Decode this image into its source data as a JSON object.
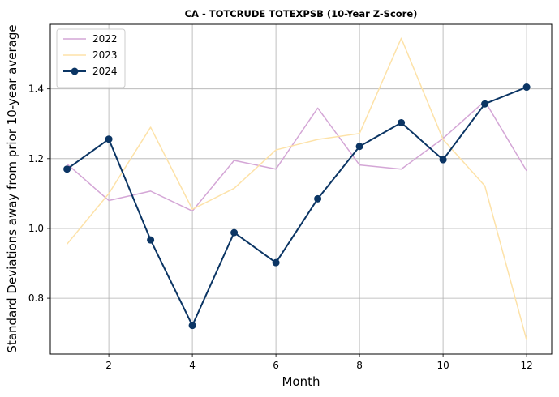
{
  "chart_data": {
    "type": "line",
    "title": "CA - TOTCRUDE TOTEXPSB (10-Year Z-Score)",
    "xlabel": "Month",
    "ylabel": "Standard Deviations away from prior 10-year average",
    "xlim": [
      0.6,
      12.6
    ],
    "ylim": [
      0.64,
      1.585
    ],
    "xticks": [
      2,
      4,
      6,
      8,
      10,
      12
    ],
    "yticks": [
      0.8,
      1.0,
      1.2,
      1.4
    ],
    "grid": true,
    "legend_position": "upper-left",
    "x": [
      1,
      2,
      3,
      4,
      5,
      6,
      7,
      8,
      9,
      10,
      11,
      12
    ],
    "series": [
      {
        "name": "2022",
        "color": "#d4a6d6",
        "markers": false,
        "values": [
          1.185,
          1.08,
          1.107,
          1.05,
          1.195,
          1.17,
          1.345,
          1.182,
          1.17,
          1.258,
          1.365,
          1.165
        ]
      },
      {
        "name": "2023",
        "color": "#fde2a8",
        "markers": false,
        "values": [
          0.955,
          1.1,
          1.29,
          1.055,
          1.115,
          1.225,
          1.255,
          1.272,
          1.545,
          1.255,
          1.122,
          0.68
        ]
      },
      {
        "name": "2024",
        "color": "#0b3564",
        "markers": true,
        "values": [
          1.17,
          1.256,
          0.967,
          0.722,
          0.988,
          0.902,
          1.085,
          1.235,
          1.303,
          1.197,
          1.357,
          1.405
        ]
      }
    ]
  }
}
